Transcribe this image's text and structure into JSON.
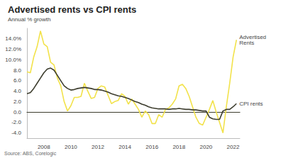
{
  "chart_data": {
    "type": "line",
    "title": "Advertised rents vs CPI rents",
    "subtitle": "Annual % growth",
    "source": "Source: ABS, Corelogic",
    "x": [
      2006.75,
      2007.0,
      2007.25,
      2007.5,
      2007.75,
      2008.0,
      2008.25,
      2008.5,
      2008.75,
      2009.0,
      2009.25,
      2009.5,
      2009.75,
      2010.0,
      2010.25,
      2010.5,
      2010.75,
      2011.0,
      2011.25,
      2011.5,
      2011.75,
      2012.0,
      2012.25,
      2012.5,
      2012.75,
      2013.0,
      2013.25,
      2013.5,
      2013.75,
      2014.0,
      2014.25,
      2014.5,
      2014.75,
      2015.0,
      2015.25,
      2015.5,
      2015.75,
      2016.0,
      2016.25,
      2016.5,
      2016.75,
      2017.0,
      2017.25,
      2017.5,
      2017.75,
      2018.0,
      2018.25,
      2018.5,
      2018.75,
      2019.0,
      2019.25,
      2019.5,
      2019.75,
      2020.0,
      2020.25,
      2020.5,
      2020.75,
      2021.0,
      2021.25,
      2021.5,
      2021.75,
      2022.0,
      2022.25
    ],
    "series": [
      {
        "name": "Advertised Rents",
        "color": "#f2e24a",
        "values": [
          7.7,
          7.5,
          10.5,
          12.5,
          15.5,
          13.0,
          12.5,
          9.5,
          9.0,
          6.5,
          5.0,
          2.0,
          0.2,
          1.2,
          2.8,
          2.8,
          3.0,
          5.5,
          4.0,
          2.6,
          2.8,
          4.5,
          5.0,
          4.8,
          3.2,
          1.6,
          2.0,
          2.2,
          3.5,
          3.0,
          1.5,
          2.5,
          1.5,
          0.5,
          -1.0,
          0.2,
          -0.5,
          -2.2,
          -2.2,
          -0.5,
          -1.0,
          0.5,
          0.8,
          1.5,
          2.5,
          5.0,
          5.3,
          4.5,
          3.0,
          1.0,
          -1.0,
          -2.2,
          -2.5,
          -1.0,
          0.5,
          2.2,
          0.0,
          -2.0,
          -4.0,
          1.0,
          5.5,
          10.5,
          13.8
        ]
      },
      {
        "name": "CPI rents",
        "color": "#3d3d2e",
        "values": [
          3.5,
          3.7,
          4.5,
          5.5,
          6.5,
          7.5,
          8.2,
          8.4,
          8.0,
          7.0,
          6.0,
          5.0,
          4.5,
          4.2,
          4.3,
          4.5,
          4.6,
          4.7,
          4.6,
          4.5,
          4.3,
          4.3,
          4.2,
          4.0,
          3.8,
          3.5,
          3.3,
          3.1,
          3.0,
          2.8,
          2.6,
          2.3,
          2.0,
          1.8,
          1.5,
          1.3,
          1.0,
          0.8,
          0.7,
          0.6,
          0.6,
          0.6,
          0.5,
          0.6,
          0.6,
          0.7,
          0.6,
          0.5,
          0.5,
          0.4,
          0.4,
          0.3,
          0.2,
          0.2,
          -1.0,
          -1.3,
          -1.4,
          -1.4,
          0.2,
          0.5,
          0.5,
          1.0,
          1.6
        ]
      }
    ],
    "xlim": [
      2006.75,
      2022.5
    ],
    "xticks": [
      2008,
      2010,
      2012,
      2014,
      2016,
      2018,
      2020,
      2022
    ],
    "ylim": [
      -5,
      16
    ],
    "yticks": [
      {
        "value": -4,
        "label": "-4.0"
      },
      {
        "value": -2,
        "label": "-2.0"
      },
      {
        "value": 0,
        "label": "0.0"
      },
      {
        "value": 2,
        "label": "2.0"
      },
      {
        "value": 4,
        "label": "4.0"
      },
      {
        "value": 6,
        "label": "6.0"
      },
      {
        "value": 8,
        "label": "8.0"
      },
      {
        "value": 10,
        "label": "10.0%"
      },
      {
        "value": 12,
        "label": "12.0%"
      },
      {
        "value": 14,
        "label": "14.0%"
      }
    ],
    "grid": false
  }
}
